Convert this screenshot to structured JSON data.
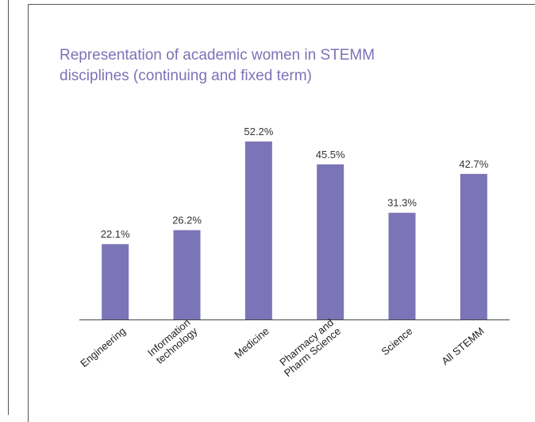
{
  "chart_data": {
    "type": "bar",
    "title": [
      "Representation of academic women in STEMM",
      "disciplines (continuing and fixed term)"
    ],
    "categories": [
      [
        "Engineering"
      ],
      [
        "Information",
        "technology"
      ],
      [
        "Medicine"
      ],
      [
        "Pharmacy and",
        "Pharm Science"
      ],
      [
        "Science"
      ],
      [
        "All STEMM"
      ]
    ],
    "values": [
      22.1,
      26.2,
      52.2,
      45.5,
      31.3,
      42.7
    ],
    "value_labels": [
      "22.1%",
      "26.2%",
      "52.2%",
      "45.5%",
      "31.3%",
      "42.7%"
    ],
    "color": "#7b74b6"
  }
}
